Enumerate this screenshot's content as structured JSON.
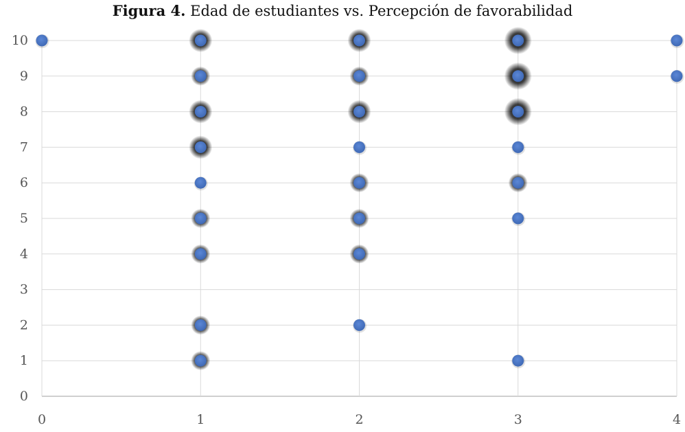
{
  "chart_data": {
    "type": "scatter",
    "title_bold": "Figura 4.",
    "title_rest": " Edad de estudiantes vs. Percepción de favorabilidad",
    "xlim": [
      0,
      4
    ],
    "ylim": [
      0,
      10
    ],
    "x_ticks": [
      "0",
      "1",
      "2",
      "3",
      "4"
    ],
    "y_ticks": [
      "0",
      "1",
      "2",
      "3",
      "4",
      "5",
      "6",
      "7",
      "8",
      "9",
      "10"
    ],
    "grid": "horizontal and vertical",
    "point_color": "#4472c4",
    "overlap_color": "#000000",
    "points": [
      {
        "x": 0,
        "y": 10,
        "overlap": 0
      },
      {
        "x": 1,
        "y": 10,
        "overlap": 2
      },
      {
        "x": 1,
        "y": 9,
        "overlap": 1
      },
      {
        "x": 1,
        "y": 8,
        "overlap": 2
      },
      {
        "x": 1,
        "y": 7,
        "overlap": 2
      },
      {
        "x": 1,
        "y": 6,
        "overlap": 0
      },
      {
        "x": 1,
        "y": 5,
        "overlap": 1
      },
      {
        "x": 1,
        "y": 4,
        "overlap": 1
      },
      {
        "x": 1,
        "y": 2,
        "overlap": 1
      },
      {
        "x": 1,
        "y": 1,
        "overlap": 1
      },
      {
        "x": 2,
        "y": 10,
        "overlap": 2
      },
      {
        "x": 2,
        "y": 9,
        "overlap": 1
      },
      {
        "x": 2,
        "y": 8,
        "overlap": 2
      },
      {
        "x": 2,
        "y": 7,
        "overlap": 0
      },
      {
        "x": 2,
        "y": 6,
        "overlap": 1
      },
      {
        "x": 2,
        "y": 5,
        "overlap": 1
      },
      {
        "x": 2,
        "y": 4,
        "overlap": 1
      },
      {
        "x": 2,
        "y": 2,
        "overlap": 0
      },
      {
        "x": 3,
        "y": 10,
        "overlap": 3
      },
      {
        "x": 3,
        "y": 9,
        "overlap": 3
      },
      {
        "x": 3,
        "y": 8,
        "overlap": 3
      },
      {
        "x": 3,
        "y": 7,
        "overlap": 0
      },
      {
        "x": 3,
        "y": 6,
        "overlap": 1
      },
      {
        "x": 3,
        "y": 5,
        "overlap": 0
      },
      {
        "x": 3,
        "y": 1,
        "overlap": 0
      },
      {
        "x": 4,
        "y": 10,
        "overlap": 0
      },
      {
        "x": 4,
        "y": 9,
        "overlap": 0
      }
    ]
  }
}
